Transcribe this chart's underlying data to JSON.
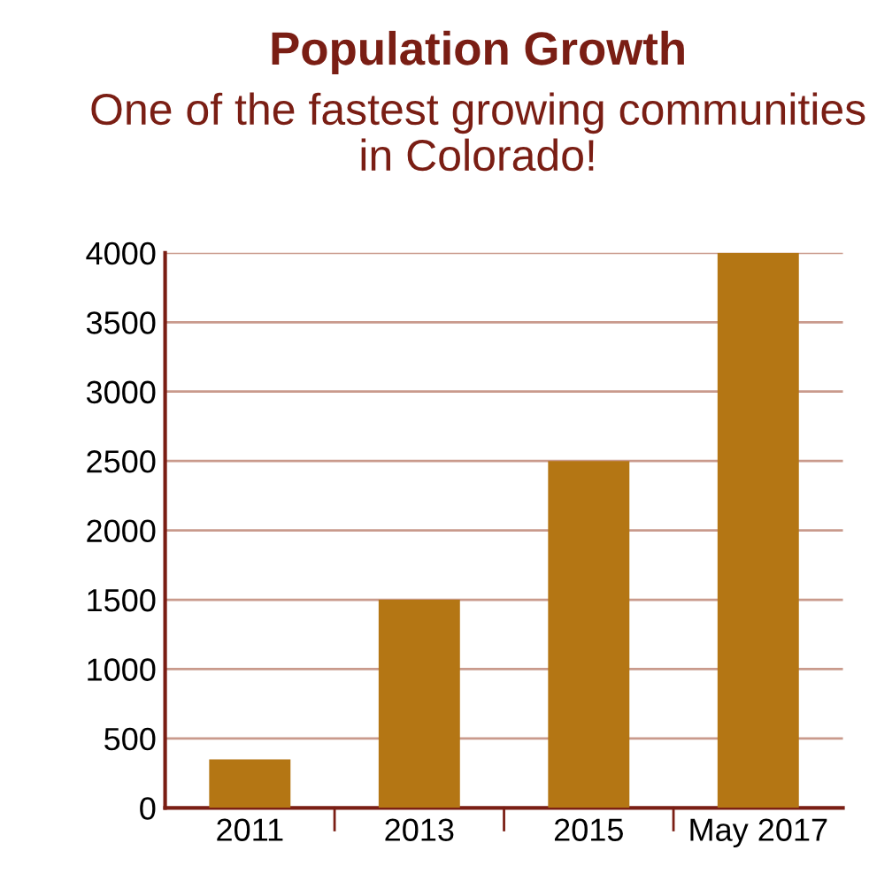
{
  "chart_data": {
    "type": "bar",
    "title": "Population Growth",
    "subtitle": "One of the fastest growing communities in Colorado!",
    "categories": [
      "2011",
      "2013",
      "2015",
      "May 2017"
    ],
    "values": [
      350,
      1500,
      2500,
      4000
    ],
    "color": "#b47614",
    "ylim": [
      0,
      4000
    ],
    "yticks": [
      0,
      500,
      1000,
      1500,
      2000,
      2500,
      3000,
      3500,
      4000
    ],
    "grid": "y"
  }
}
